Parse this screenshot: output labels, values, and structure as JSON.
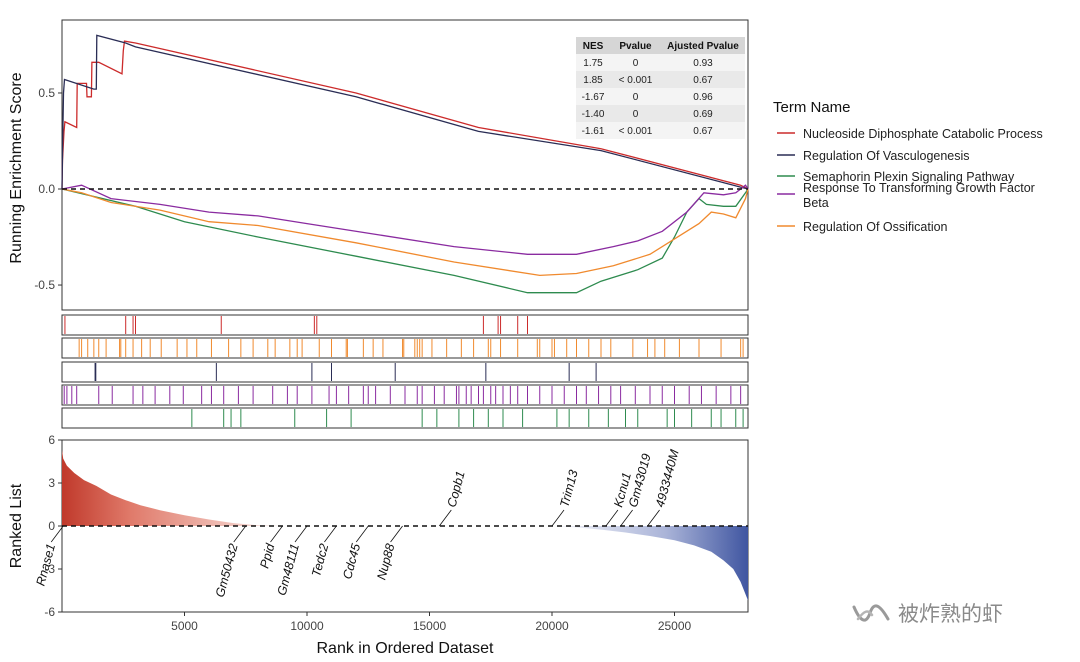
{
  "chart_data": {
    "type": "line",
    "top_panel": {
      "ylabel": "Running Enrichment Score",
      "yticks": [
        "0.5",
        "0.0",
        "-0.5"
      ],
      "ytick_values": [
        0.5,
        0.0,
        -0.5
      ],
      "ylim": [
        -0.63,
        0.88
      ],
      "xlim": [
        0,
        28000
      ],
      "zero_line": "dashed",
      "series": [
        {
          "name": "Nucleoside Diphosphate Catabolic Process",
          "color": "#cc2b2b",
          "x": [
            0,
            20,
            80,
            120,
            600,
            620,
            1000,
            1020,
            1200,
            1220,
            1500,
            2450,
            2500,
            2550,
            3000,
            12000,
            17000,
            22000,
            27700,
            28000
          ],
          "y": [
            0,
            0.15,
            0.3,
            0.35,
            0.32,
            0.55,
            0.55,
            0.48,
            0.48,
            0.66,
            0.66,
            0.6,
            0.72,
            0.77,
            0.76,
            0.5,
            0.32,
            0.21,
            0.02,
            0
          ]
        },
        {
          "name": "Regulation Of Vasculogenesis",
          "color": "#2a2d55",
          "x": [
            0,
            30,
            60,
            100,
            1300,
            1400,
            1420,
            2600,
            3000,
            12000,
            17000,
            22000,
            27700,
            28000
          ],
          "y": [
            0,
            0.25,
            0.5,
            0.57,
            0.52,
            0.52,
            0.8,
            0.76,
            0.74,
            0.48,
            0.3,
            0.2,
            0.01,
            0
          ]
        },
        {
          "name": "Semaphorin Plexin Signaling Pathway",
          "color": "#2e8b4f",
          "x": [
            0,
            3000,
            5000,
            8000,
            12000,
            16000,
            19000,
            21000,
            22000,
            23500,
            24500,
            25000,
            25500,
            26000,
            26300,
            27000,
            27500,
            27900,
            28000
          ],
          "y": [
            0,
            -0.09,
            -0.17,
            -0.25,
            -0.35,
            -0.45,
            -0.54,
            -0.54,
            -0.48,
            -0.42,
            -0.36,
            -0.25,
            -0.12,
            -0.05,
            -0.08,
            -0.09,
            -0.09,
            -0.02,
            0
          ]
        },
        {
          "name": "Response To Transforming Growth Factor Beta",
          "color": "#8a2ba0",
          "x": [
            0,
            800,
            2000,
            4000,
            6000,
            8000,
            10000,
            13000,
            16000,
            19000,
            21000,
            22500,
            23500,
            24500,
            25500,
            26200,
            27000,
            27500,
            27900,
            28000
          ],
          "y": [
            0,
            0.02,
            -0.05,
            -0.08,
            -0.12,
            -0.14,
            -0.18,
            -0.24,
            -0.3,
            -0.34,
            -0.34,
            -0.3,
            -0.27,
            -0.22,
            -0.12,
            -0.02,
            -0.03,
            -0.02,
            0.02,
            0
          ]
        },
        {
          "name": "Regulation Of Ossification",
          "color": "#f08a2e",
          "x": [
            0,
            800,
            2000,
            4000,
            6000,
            8000,
            12000,
            16000,
            19500,
            21000,
            22500,
            24000,
            25000,
            26000,
            26500,
            27000,
            27500,
            27900,
            28000
          ],
          "y": [
            0,
            -0.02,
            -0.07,
            -0.11,
            -0.17,
            -0.19,
            -0.28,
            -0.38,
            -0.45,
            -0.44,
            -0.4,
            -0.34,
            -0.26,
            -0.18,
            -0.12,
            -0.13,
            -0.15,
            -0.05,
            0
          ]
        }
      ]
    },
    "stats_table": {
      "columns": [
        "NES",
        "Pvalue",
        "Ajusted Pvalue"
      ],
      "rows": [
        [
          "1.75",
          "0",
          "0.93"
        ],
        [
          "1.85",
          "< 0.001",
          "0.67"
        ],
        [
          "-1.67",
          "0",
          "0.96"
        ],
        [
          "-1.40",
          "0",
          "0.69"
        ],
        [
          "-1.61",
          "< 0.001",
          "0.67"
        ]
      ],
      "placement": "top-right"
    },
    "hit_tracks": [
      {
        "name": "Nucleoside Diphosphate Catabolic Process",
        "color": "#cc2b2b",
        "hits": [
          120,
          2600,
          2900,
          3000,
          6500,
          10300,
          10400,
          17200,
          17800,
          17900,
          18600,
          19000
        ]
      },
      {
        "name": "Regulation Of Ossification",
        "color": "#f08a2e",
        "hits": [
          700,
          800,
          1050,
          1300,
          1500,
          1800,
          2350,
          2400,
          2600,
          2900,
          3250,
          3600,
          4050,
          4700,
          5100,
          5500,
          6100,
          6800,
          7300,
          7800,
          8400,
          8700,
          9300,
          9600,
          9800,
          10500,
          11000,
          11600,
          11650,
          12300,
          12700,
          13100,
          13900,
          13950,
          14400,
          14500,
          14600,
          14700,
          15100,
          15700,
          16300,
          16800,
          17400,
          17500,
          17900,
          18600,
          19400,
          19500,
          20000,
          20100,
          20600,
          21000,
          21500,
          22000,
          22400,
          23300,
          23900,
          24200,
          24600,
          25200,
          26000,
          26900,
          27700,
          27800
        ]
      },
      {
        "name": "Regulation Of Vasculogenesis",
        "color": "#2a2d55",
        "hits": [
          1350,
          1380,
          6300,
          10200,
          11000,
          13600,
          17300,
          20700,
          21800
        ]
      },
      {
        "name": "Response To Transforming Growth Factor Beta",
        "color": "#8a2ba0",
        "hits": [
          90,
          200,
          400,
          600,
          1500,
          2050,
          2900,
          3300,
          3800,
          4400,
          4950,
          5700,
          6100,
          6600,
          7200,
          7800,
          8600,
          9200,
          9600,
          10200,
          10900,
          11200,
          11700,
          12300,
          12500,
          12800,
          13400,
          14000,
          14500,
          14700,
          15200,
          15600,
          16100,
          16200,
          16500,
          16700,
          17000,
          17200,
          17500,
          17700,
          18000,
          18300,
          18600,
          19000,
          19500,
          20000,
          20500,
          21000,
          21400,
          21900,
          22400,
          22800,
          23400,
          24000,
          24500,
          25000,
          25600,
          26100,
          26700,
          27300,
          27700
        ]
      },
      {
        "name": "Semaphorin Plexin Signaling Pathway",
        "color": "#2e8b4f",
        "hits": [
          5300,
          6600,
          6900,
          7300,
          9500,
          10800,
          11800,
          14700,
          15300,
          16200,
          16800,
          17400,
          18000,
          18800,
          20200,
          20700,
          21500,
          22300,
          23000,
          23500,
          24700,
          25000,
          25700,
          26500,
          26900,
          27500,
          27800
        ]
      }
    ],
    "bottom_panel": {
      "ylabel": "Ranked List",
      "xlabel": "Rank in Ordered Dataset",
      "yticks": [
        "6",
        "3",
        "0",
        "-3",
        "-6"
      ],
      "ytick_values": [
        6,
        3,
        0,
        -3,
        -6
      ],
      "ylim": [
        -6,
        6
      ],
      "xticks": [
        "5000",
        "10000",
        "15000",
        "20000",
        "25000"
      ],
      "xtick_values": [
        5000,
        10000,
        15000,
        20000,
        25000
      ],
      "xlim": [
        0,
        28000
      ],
      "zero_line": "dashed",
      "ranked_metric_profile": {
        "x": [
          0,
          50,
          200,
          500,
          900,
          1400,
          2000,
          2600,
          3200,
          4000,
          5000,
          6000,
          7000,
          8000,
          9000,
          10000,
          15000,
          20000,
          21000,
          22000,
          23000,
          24000,
          25000,
          25800,
          26500,
          27000,
          27400,
          27700,
          28000
        ],
        "y": [
          5.3,
          4.7,
          4.2,
          3.7,
          3.2,
          2.8,
          2.2,
          1.8,
          1.45,
          1.1,
          0.75,
          0.45,
          0.2,
          0.05,
          0,
          0,
          0,
          0,
          -0.1,
          -0.25,
          -0.45,
          -0.7,
          -1.0,
          -1.35,
          -1.8,
          -2.4,
          -3.0,
          -3.9,
          -5.2
        ]
      },
      "gene_labels": [
        {
          "gene": "Rnase1",
          "x": 50,
          "side": "below"
        },
        {
          "gene": "Gm50432",
          "x": 7500,
          "side": "below"
        },
        {
          "gene": "Ppid",
          "x": 9000,
          "side": "below"
        },
        {
          "gene": "Gm48111",
          "x": 10000,
          "side": "below"
        },
        {
          "gene": "Tedc2",
          "x": 11200,
          "side": "below"
        },
        {
          "gene": "Cdc45",
          "x": 12500,
          "side": "below"
        },
        {
          "gene": "Nup88",
          "x": 13900,
          "side": "below"
        },
        {
          "gene": "Copb1",
          "x": 15400,
          "side": "above"
        },
        {
          "gene": "Trim13",
          "x": 20000,
          "side": "above"
        },
        {
          "gene": "Kcnu1",
          "x": 22200,
          "side": "above"
        },
        {
          "gene": "Gm43019",
          "x": 22800,
          "side": "above"
        },
        {
          "gene": "4933440M",
          "x": 23900,
          "side": "above"
        }
      ]
    },
    "legend": {
      "title": "Term Name",
      "placement": "right",
      "items": [
        {
          "label": "Nucleoside Diphosphate Catabolic Process",
          "color": "#cc2b2b"
        },
        {
          "label": "Regulation Of Vasculogenesis",
          "color": "#2a2d55"
        },
        {
          "label": "Semaphorin Plexin Signaling Pathway",
          "color": "#2e8b4f"
        },
        {
          "label": "Response To Transforming Growth Factor Beta",
          "color": "#8a2ba0"
        },
        {
          "label": "Regulation Of Ossification",
          "color": "#f08a2e"
        }
      ]
    }
  },
  "watermark": {
    "icon": "wechat-channel-icon",
    "text": "被炸熟的虾"
  }
}
